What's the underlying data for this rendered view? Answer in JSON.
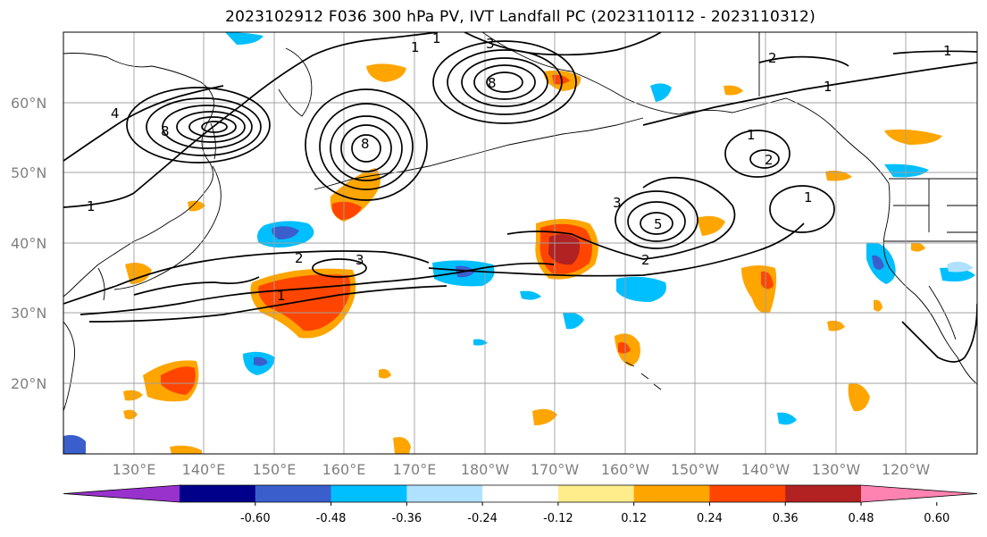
{
  "title": "2023102912 F036 300 hPa PV, IVT Landfall PC (2023110112 - 2023110312)",
  "lat_labels": [
    "60°N",
    "50°N",
    "40°N",
    "30°N",
    "20°N"
  ],
  "lon_labels": [
    "130°E",
    "140°E",
    "150°E",
    "160°E",
    "170°E",
    "180°W",
    "170°W",
    "160°W",
    "150°W",
    "140°W",
    "130°W",
    "120°W"
  ],
  "colorbar": {
    "colors": [
      "#9932cc",
      "#00008b",
      "#3a5fcd",
      "#00bfff",
      "#b0e2ff",
      "#ffffff",
      "#ffec8b",
      "#ffa500",
      "#ff4500",
      "#b22222",
      "#ff83b0"
    ],
    "tick_labels": [
      "-0.60",
      "-0.48",
      "-0.36",
      "-0.24",
      "-0.12",
      "0.12",
      "0.24",
      "0.36",
      "0.48",
      "0.60"
    ]
  },
  "contour_labels": [
    "1",
    "1",
    "1",
    "1",
    "1",
    "2",
    "2",
    "2",
    "3",
    "3",
    "3",
    "4",
    "5",
    "8",
    "8",
    "8",
    "1",
    "2",
    "1",
    "1"
  ]
}
